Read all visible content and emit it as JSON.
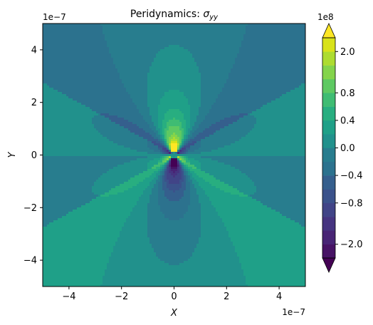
{
  "chart_data": {
    "type": "heatmap",
    "subtype": "filled-contour",
    "title": "Peridynamics: σyy",
    "title_prefix": "Peridynamics: ",
    "title_symbol": "σ",
    "title_subscript": "yy",
    "xlabel": "X",
    "ylabel": "Y",
    "xlim": [
      -5e-07,
      5e-07
    ],
    "ylim": [
      -5e-07,
      5e-07
    ],
    "x_ticks": [
      -4e-07,
      -2e-07,
      0,
      2e-07,
      4e-07
    ],
    "x_tick_labels": [
      "−4",
      "−2",
      "0",
      "2",
      "4"
    ],
    "x_offset_label": "1e−7",
    "y_ticks": [
      -4e-07,
      -2e-07,
      0,
      2e-07,
      4e-07
    ],
    "y_tick_labels": [
      "−4",
      "−2",
      "0",
      "2",
      "4"
    ],
    "y_offset_label": "1e−7",
    "grid": false,
    "colormap": "viridis",
    "colorbar": {
      "extend": "both",
      "offset_label": "1e8",
      "levels": [
        -240000000.0,
        -200000000.0,
        -160000000.0,
        -120000000.0,
        -80000000.0,
        -60000000.0,
        -40000000.0,
        -20000000.0,
        0.0,
        20000000.0,
        40000000.0,
        60000000.0,
        80000000.0,
        120000000.0,
        160000000.0,
        200000000.0,
        240000000.0
      ],
      "ticks": [
        -200000000.0,
        -80000000.0,
        -40000000.0,
        0.0,
        40000000.0,
        80000000.0,
        200000000.0
      ],
      "tick_labels": [
        "−2.0",
        "−0.8",
        "−0.4",
        "0.0",
        "0.4",
        "0.8",
        "2.0"
      ],
      "band_colors": [
        "#440154",
        "#471365",
        "#482475",
        "#463480",
        "#414487",
        "#3b528b",
        "#355f8d",
        "#2c728e",
        "#287d8e",
        "#21918c",
        "#1fa088",
        "#28ae80",
        "#3fbc73",
        "#5ec962",
        "#84d44b",
        "#addc30",
        "#d8e219",
        "#fde725"
      ],
      "under_color": "#440154",
      "over_color": "#fde725"
    },
    "field": {
      "description_source": "visible contour pattern of a point-dislocation-like sigma_yy field",
      "background_levels": {
        "upper_side_lobes": 10000000.0,
        "lower_side_lobes": -10000000.0,
        "upper_center_lobe": -30000000.0,
        "lower_center_lobe": 30000000.0
      }
    }
  }
}
